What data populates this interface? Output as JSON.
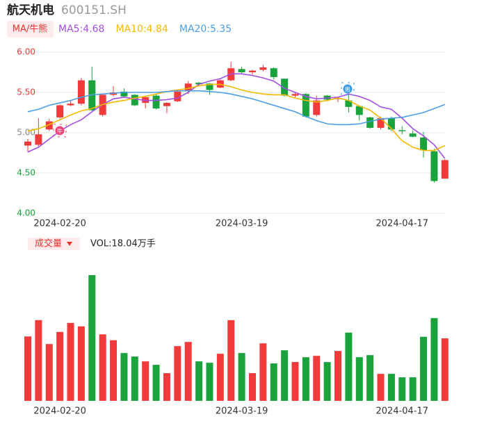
{
  "chart_data": {
    "type": "candlestick",
    "title": "航天机电",
    "subtitle": "600151.SH",
    "ma_button": "MA/牛熊",
    "volume_button": "成交量",
    "volume_label": "VOL:18.04万手",
    "up_color": "#f23a3a",
    "down_color": "#1aa33c",
    "categories": [
      null,
      null,
      null,
      "2024-02-20",
      null,
      null,
      null,
      null,
      null,
      null,
      null,
      null,
      null,
      null,
      null,
      null,
      null,
      null,
      null,
      null,
      "2024-03-19",
      null,
      null,
      null,
      null,
      null,
      null,
      null,
      null,
      null,
      null,
      null,
      null,
      null,
      null,
      "2024-04-17",
      null,
      null,
      null,
      null
    ],
    "open": [
      4.84,
      4.85,
      5.04,
      5.19,
      5.34,
      5.36,
      5.65,
      5.22,
      5.47,
      5.51,
      5.47,
      5.37,
      5.46,
      5.33,
      5.39,
      5.52,
      5.62,
      5.61,
      5.56,
      5.65,
      5.79,
      5.75,
      5.78,
      5.8,
      5.67,
      5.46,
      5.48,
      5.22,
      5.46,
      5.42,
      5.4,
      5.33,
      5.19,
      5.06,
      5.18,
      5.03,
      4.99,
      4.94,
      4.77,
      4.43
    ],
    "close": [
      4.89,
      4.98,
      5.14,
      5.34,
      5.36,
      5.65,
      5.28,
      5.47,
      5.5,
      5.45,
      5.34,
      5.44,
      5.3,
      5.37,
      5.51,
      5.61,
      5.6,
      5.53,
      5.65,
      5.8,
      5.75,
      5.77,
      5.81,
      5.69,
      5.46,
      5.48,
      5.2,
      5.4,
      5.41,
      5.43,
      5.32,
      5.22,
      5.06,
      5.18,
      5.04,
      5.02,
      4.95,
      4.78,
      4.4,
      4.66
    ],
    "high": [
      4.92,
      5.18,
      5.17,
      5.35,
      5.4,
      5.68,
      5.82,
      5.48,
      5.58,
      5.55,
      5.48,
      5.46,
      5.48,
      5.38,
      5.52,
      5.64,
      5.63,
      5.62,
      5.66,
      5.88,
      5.82,
      5.78,
      5.84,
      5.81,
      5.67,
      5.5,
      5.49,
      5.46,
      5.47,
      5.45,
      5.49,
      5.34,
      5.2,
      5.2,
      5.2,
      5.08,
      5.03,
      5.01,
      4.8,
      4.67
    ],
    "low": [
      4.76,
      4.83,
      5.02,
      5.17,
      5.33,
      5.34,
      5.26,
      5.2,
      5.45,
      5.44,
      5.33,
      5.3,
      5.29,
      5.24,
      5.38,
      5.48,
      5.58,
      5.47,
      5.55,
      5.64,
      5.73,
      5.72,
      5.76,
      5.66,
      5.45,
      5.44,
      5.19,
      5.2,
      5.39,
      5.38,
      5.25,
      5.15,
      5.05,
      5.04,
      5.02,
      4.98,
      4.94,
      4.69,
      4.38,
      4.43
    ],
    "volume": [
      18.6,
      23.3,
      16.4,
      19.9,
      22.5,
      21.5,
      36.3,
      19.2,
      17.5,
      13.8,
      12.8,
      11.4,
      10.4,
      8.0,
      15.8,
      17.0,
      11.4,
      11.0,
      13.6,
      23.3,
      13.8,
      8.0,
      16.6,
      10.8,
      14.6,
      11.2,
      12.6,
      13.0,
      11.2,
      14.4,
      19.7,
      12.6,
      13.2,
      7.8,
      7.8,
      6.8,
      6.8,
      18.5,
      23.9,
      18.04
    ],
    "ma_lines": [
      {
        "label": "MA5:4.68",
        "color": "#a34ee6",
        "values": [
          4.76,
          4.82,
          4.92,
          5.02,
          5.1,
          5.16,
          5.26,
          5.35,
          5.42,
          5.44,
          5.42,
          5.4,
          5.4,
          5.41,
          5.43,
          5.5,
          5.6,
          5.64,
          5.67,
          5.73,
          5.73,
          5.71,
          5.68,
          5.64,
          5.55,
          5.5,
          5.45,
          5.42,
          5.43,
          5.44,
          5.48,
          5.45,
          5.4,
          5.32,
          5.29,
          5.18,
          5.05,
          4.96,
          4.85,
          4.68
        ]
      },
      {
        "label": "MA10:4.84",
        "color": "#f5b800",
        "values": [
          5.02,
          5.05,
          5.1,
          5.16,
          5.22,
          5.27,
          5.3,
          5.35,
          5.38,
          5.4,
          5.43,
          5.45,
          5.48,
          5.51,
          5.53,
          5.55,
          5.58,
          5.6,
          5.6,
          5.57,
          5.53,
          5.5,
          5.48,
          5.47,
          5.47,
          5.43,
          5.4,
          5.38,
          5.4,
          5.43,
          5.4,
          5.33,
          5.28,
          5.18,
          5.05,
          4.9,
          4.82,
          4.78,
          4.78,
          4.84
        ]
      },
      {
        "label": "MA20:5.35",
        "color": "#4a9ee8",
        "values": [
          5.26,
          5.29,
          5.34,
          5.37,
          5.4,
          5.44,
          5.47,
          5.48,
          5.49,
          5.5,
          5.5,
          5.5,
          5.5,
          5.51,
          5.52,
          5.52,
          5.52,
          5.51,
          5.5,
          5.48,
          5.45,
          5.42,
          5.38,
          5.34,
          5.3,
          5.26,
          5.2,
          5.15,
          5.11,
          5.1,
          5.1,
          5.11,
          5.14,
          5.17,
          5.18,
          5.19,
          5.22,
          5.25,
          5.3,
          5.35
        ]
      }
    ],
    "signals": [
      {
        "label": "牛"
      },
      {
        "label": "熊"
      }
    ],
    "ylim": [
      4,
      6
    ],
    "yticks": [
      {
        "value": 4,
        "label": "4.00"
      },
      {
        "value": 4.5,
        "label": "4.50"
      },
      {
        "value": 5,
        "label": "5.00"
      },
      {
        "value": 5.5,
        "label": "5.50"
      },
      {
        "value": 6,
        "label": "6.00"
      }
    ],
    "grid": true
  }
}
